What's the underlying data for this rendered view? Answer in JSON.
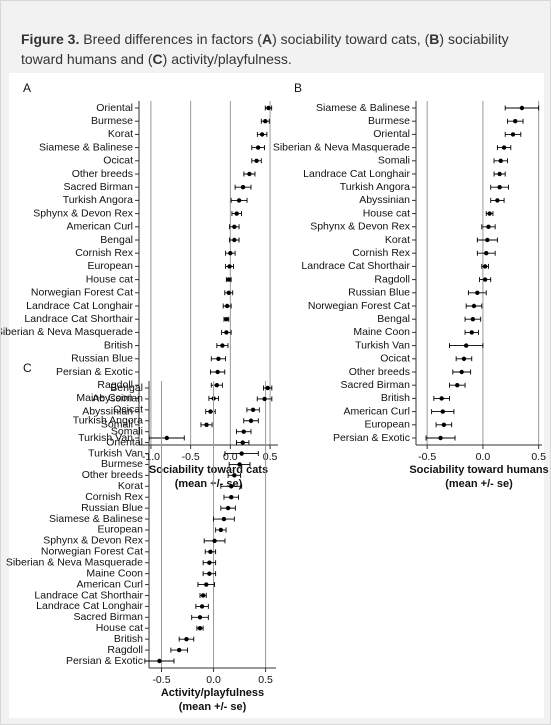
{
  "caption": [
    "Figure 3.",
    " Breed differences in factors (",
    "A",
    ") sociability toward cats, (",
    "B",
    ") sociability toward humans and (",
    "C",
    ") activity/playfulness."
  ],
  "chart_data": [
    {
      "type": "dot",
      "label": "A",
      "xlabel": "Sociability toward cats",
      "xlabel_note": "(mean +/- se)",
      "xlim": [
        -1.15,
        0.6
      ],
      "xticks": [
        {
          "value": -1,
          "label": "-1.0"
        },
        -0.5,
        {
          "value": 0,
          "label": "0.0"
        },
        0.5
      ],
      "grid": true,
      "color": "#000000",
      "categories": [
        "Oriental",
        "Burmese",
        "Korat",
        "Siamese & Balinese",
        "Ocicat",
        "Other breeds",
        "Sacred Birman",
        "Turkish Angora",
        "Sphynx & Devon Rex",
        "American Curl",
        "Bengal",
        "Cornish Rex",
        "European",
        "House cat",
        "Norwegian Forest Cat",
        "Landrace Cat Longhair",
        "Landrace Cat Shorthair",
        "Siberian & Neva Masquerade",
        "British",
        "Russian Blue",
        "Persian & Exotic",
        "Ragdoll",
        "Maine Coon",
        "Abyssinian",
        "Somali",
        "Turkish Van"
      ],
      "values": [
        0.48,
        0.44,
        0.4,
        0.35,
        0.33,
        0.24,
        0.16,
        0.11,
        0.08,
        0.05,
        0.05,
        0.0,
        -0.01,
        -0.02,
        -0.02,
        -0.04,
        -0.05,
        -0.05,
        -0.1,
        -0.15,
        -0.16,
        -0.17,
        -0.21,
        -0.25,
        -0.3,
        -0.8
      ],
      "errors": [
        0.04,
        0.05,
        0.06,
        0.08,
        0.06,
        0.07,
        0.1,
        0.1,
        0.06,
        0.06,
        0.06,
        0.06,
        0.05,
        0.03,
        0.05,
        0.05,
        0.03,
        0.06,
        0.07,
        0.09,
        0.09,
        0.07,
        0.06,
        0.06,
        0.07,
        0.22
      ]
    },
    {
      "type": "dot",
      "label": "B",
      "xlabel": "Sociability toward humans",
      "xlabel_note": "(mean +/- se)",
      "xlim": [
        -0.6,
        0.53
      ],
      "xticks": [
        -0.5,
        {
          "value": 0,
          "label": "0.0"
        },
        0.5
      ],
      "grid": true,
      "color": "#000000",
      "categories": [
        "Siamese & Balinese",
        "Burmese",
        "Oriental",
        "Siberian & Neva Masquerade",
        "Somali",
        "Landrace Cat Longhair",
        "Turkish Angora",
        "Abyssinian",
        "House cat",
        "Sphynx & Devon Rex",
        "Korat",
        "Cornish Rex",
        "Landrace Cat Shorthair",
        "Ragdoll",
        "Russian Blue",
        "Norwegian Forest Cat",
        "Bengal",
        "Maine Coon",
        "Turkish Van",
        "Ocicat",
        "Other breeds",
        "Sacred Birman",
        "British",
        "American Curl",
        "European",
        "Persian & Exotic"
      ],
      "values": [
        0.35,
        0.29,
        0.27,
        0.19,
        0.16,
        0.15,
        0.15,
        0.13,
        0.06,
        0.05,
        0.04,
        0.03,
        0.02,
        0.02,
        -0.05,
        -0.08,
        -0.09,
        -0.1,
        -0.15,
        -0.17,
        -0.19,
        -0.23,
        -0.37,
        -0.36,
        -0.35,
        -0.38
      ],
      "errors": [
        0.15,
        0.07,
        0.07,
        0.06,
        0.06,
        0.05,
        0.08,
        0.06,
        0.03,
        0.06,
        0.09,
        0.08,
        0.03,
        0.05,
        0.08,
        0.07,
        0.07,
        0.06,
        0.15,
        0.07,
        0.08,
        0.07,
        0.07,
        0.1,
        0.07,
        0.13
      ]
    },
    {
      "type": "dot",
      "label": "C",
      "xlabel": "Activity/playfulness",
      "xlabel_note": "(mean +/- se)",
      "xlim": [
        -0.62,
        0.6
      ],
      "xticks": [
        -0.5,
        {
          "value": 0,
          "label": "0.0"
        },
        0.5
      ],
      "grid": true,
      "color": "#000000",
      "categories": [
        "Bengal",
        "Abyssinian",
        "Ocicat",
        "Turkish Angora",
        "Somali",
        "Oriental",
        "Turkish Van",
        "Burmese",
        "Other breeds",
        "Korat",
        "Cornish Rex",
        "Russian Blue",
        "Siamese & Balinese",
        "European",
        "Sphynx & Devon Rex",
        "Norwegian Forest Cat",
        "Siberian & Neva Masquerade",
        "Maine Coon",
        "American Curl",
        "Landrace Cat Shorthair",
        "Landrace Cat Longhair",
        "Sacred Birman",
        "House cat",
        "British",
        "Ragdoll",
        "Persian & Exotic"
      ],
      "values": [
        0.52,
        0.49,
        0.38,
        0.36,
        0.29,
        0.28,
        0.27,
        0.25,
        0.2,
        0.17,
        0.17,
        0.14,
        0.1,
        0.07,
        0.01,
        -0.03,
        -0.04,
        -0.04,
        -0.07,
        -0.1,
        -0.11,
        -0.13,
        -0.13,
        -0.26,
        -0.33,
        -0.52
      ],
      "errors": [
        0.04,
        0.07,
        0.06,
        0.07,
        0.07,
        0.06,
        0.16,
        0.1,
        0.06,
        0.1,
        0.07,
        0.07,
        0.1,
        0.05,
        0.1,
        0.05,
        0.06,
        0.06,
        0.08,
        0.03,
        0.06,
        0.08,
        0.03,
        0.07,
        0.08,
        0.14
      ]
    }
  ]
}
